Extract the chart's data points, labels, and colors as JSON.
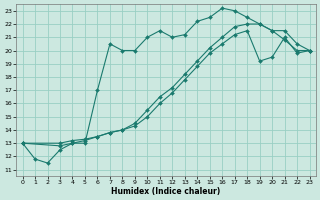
{
  "xlabel": "Humidex (Indice chaleur)",
  "bg_color": "#cce8e0",
  "grid_color": "#99cfc4",
  "line_color": "#1a7a6e",
  "xlim": [
    -0.5,
    23.5
  ],
  "ylim": [
    10.5,
    23.5
  ],
  "yticks": [
    11,
    12,
    13,
    14,
    15,
    16,
    17,
    18,
    19,
    20,
    21,
    22,
    23
  ],
  "xticks": [
    0,
    1,
    2,
    3,
    4,
    5,
    6,
    7,
    8,
    9,
    10,
    11,
    12,
    13,
    14,
    15,
    16,
    17,
    18,
    19,
    20,
    21,
    22,
    23
  ],
  "series": [
    {
      "x": [
        0,
        1,
        2,
        3,
        4,
        5,
        6,
        7,
        8,
        9,
        10,
        11,
        12,
        13,
        14,
        15,
        16,
        17,
        18,
        19,
        20,
        21,
        22,
        23
      ],
      "y": [
        13.0,
        11.8,
        11.5,
        12.5,
        13.0,
        13.0,
        17.0,
        20.5,
        20.0,
        20.0,
        21.0,
        21.5,
        21.0,
        21.2,
        22.2,
        22.5,
        23.2,
        23.0,
        22.5,
        22.0,
        21.5,
        20.8,
        20.0,
        20.0
      ]
    },
    {
      "x": [
        0,
        3,
        4,
        5,
        6,
        7,
        8,
        9,
        10,
        11,
        12,
        13,
        14,
        15,
        16,
        17,
        18,
        19,
        20,
        21,
        22,
        23
      ],
      "y": [
        13.0,
        13.0,
        13.2,
        13.3,
        13.5,
        13.8,
        14.0,
        14.5,
        15.5,
        16.5,
        17.2,
        18.2,
        19.2,
        20.2,
        21.0,
        21.8,
        22.0,
        22.0,
        21.5,
        21.5,
        20.5,
        20.0
      ]
    },
    {
      "x": [
        0,
        3,
        4,
        5,
        6,
        7,
        8,
        9,
        10,
        11,
        12,
        13,
        14,
        15,
        16,
        17,
        18,
        19,
        20,
        21,
        22,
        23
      ],
      "y": [
        13.0,
        12.8,
        13.0,
        13.2,
        13.5,
        13.8,
        14.0,
        14.3,
        15.0,
        16.0,
        16.8,
        17.8,
        18.8,
        19.8,
        20.5,
        21.2,
        21.5,
        19.2,
        19.5,
        21.0,
        19.8,
        20.0
      ]
    }
  ]
}
